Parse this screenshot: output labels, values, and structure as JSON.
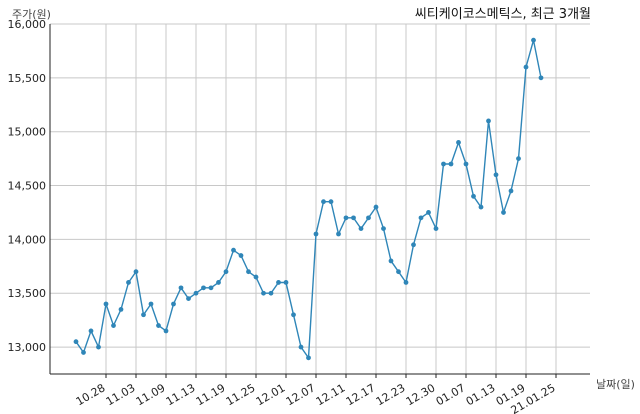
{
  "chart_data": {
    "type": "line",
    "title": "씨티케이코스메틱스, 최근 3개월",
    "ylabel": "주가(원)",
    "xlabel": "날짜(일)",
    "ylim": [
      12750,
      16000
    ],
    "yticks": [
      13000,
      13500,
      14000,
      14500,
      15000,
      15500,
      16000
    ],
    "ytick_labels": [
      "13,000",
      "13,500",
      "14,000",
      "14,500",
      "15,000",
      "15,500",
      "16,000"
    ],
    "xticks": [
      "10.28",
      "11.03",
      "11.09",
      "11.13",
      "11.19",
      "11.25",
      "12.01",
      "12.07",
      "12.11",
      "12.17",
      "12.23",
      "12.30",
      "01.07",
      "01.13",
      "01.19",
      "21.01.25"
    ],
    "xtick_indices": [
      4,
      8,
      12,
      16,
      20,
      24,
      28,
      32,
      36,
      40,
      44,
      48,
      52,
      56,
      60,
      64
    ],
    "grid": true,
    "series": [
      {
        "color": "#2f86b8",
        "values": [
          13050,
          12950,
          13150,
          13000,
          13400,
          13200,
          13350,
          13600,
          13700,
          13300,
          13400,
          13200,
          13150,
          13400,
          13550,
          13450,
          13500,
          13550,
          13550,
          13600,
          13700,
          13900,
          13850,
          13700,
          13650,
          13500,
          13500,
          13600,
          13600,
          13300,
          13000,
          12900,
          14050,
          14350,
          14350,
          14050,
          14200,
          14200,
          14100,
          14200,
          14300,
          14100,
          13800,
          13700,
          13600,
          13950,
          14200,
          14250,
          14100,
          14700,
          14700,
          14900,
          14700,
          14400,
          14300,
          15100,
          14600,
          14250,
          14450,
          14750,
          15600,
          15850,
          15500
        ]
      }
    ]
  }
}
